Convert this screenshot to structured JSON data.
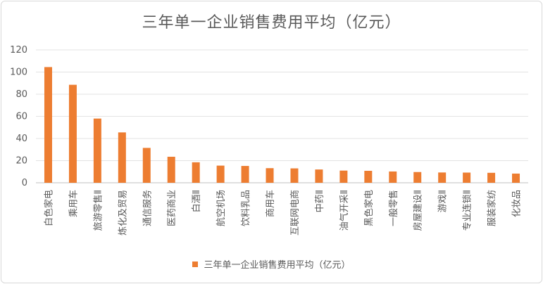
{
  "chart_data": {
    "type": "bar",
    "title": "三年单一企业销售费用平均（亿元）",
    "categories": [
      "白色家电",
      "乘用车",
      "旅游零售Ⅱ",
      "炼化及贸易",
      "通信服务",
      "医药商业",
      "白酒Ⅱ",
      "航空机场",
      "饮料乳品",
      "商用车",
      "互联网电商",
      "中药Ⅱ",
      "油气开采Ⅱ",
      "黑色家电",
      "一般零售",
      "房屋建设Ⅱ",
      "游戏Ⅱ",
      "专业连锁Ⅱ",
      "服装家纺",
      "化妆品"
    ],
    "series": [
      {
        "name": "三年单一企业销售费用平均（亿元）",
        "color": "#ED7D31",
        "values": [
          104.5,
          88.5,
          58,
          45.5,
          31.5,
          23.5,
          18.5,
          15.5,
          15.2,
          13.2,
          13.0,
          12.0,
          11.0,
          10.8,
          10.2,
          9.7,
          9.3,
          9.2,
          9.0,
          8.3
        ]
      }
    ],
    "ylim": [
      0,
      120
    ],
    "yticks": [
      0,
      20,
      40,
      60,
      80,
      100,
      120
    ],
    "grid": true,
    "legend_position": "bottom"
  }
}
